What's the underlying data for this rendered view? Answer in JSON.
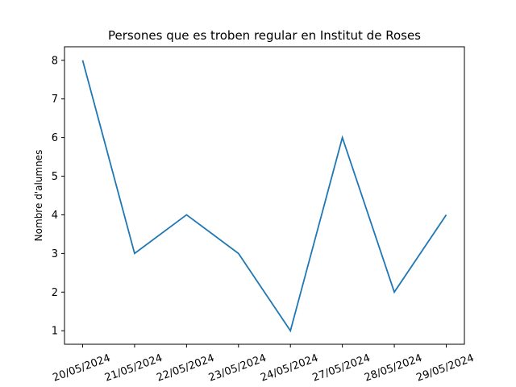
{
  "chart_data": {
    "type": "line",
    "title": "Persones que es troben regular en Institut de Roses",
    "xlabel": "",
    "ylabel": "Nombre d'alumnes",
    "categories": [
      "20/05/2024",
      "21/05/2024",
      "22/05/2024",
      "23/05/2024",
      "24/05/2024",
      "27/05/2024",
      "28/05/2024",
      "29/05/2024"
    ],
    "values": [
      8,
      3,
      4,
      3,
      1,
      6,
      2,
      4
    ],
    "yticks": [
      1,
      2,
      3,
      4,
      5,
      6,
      7,
      8
    ],
    "ylim": [
      0.65,
      8.35
    ],
    "grid": false,
    "line_color": "#1f77b4"
  }
}
